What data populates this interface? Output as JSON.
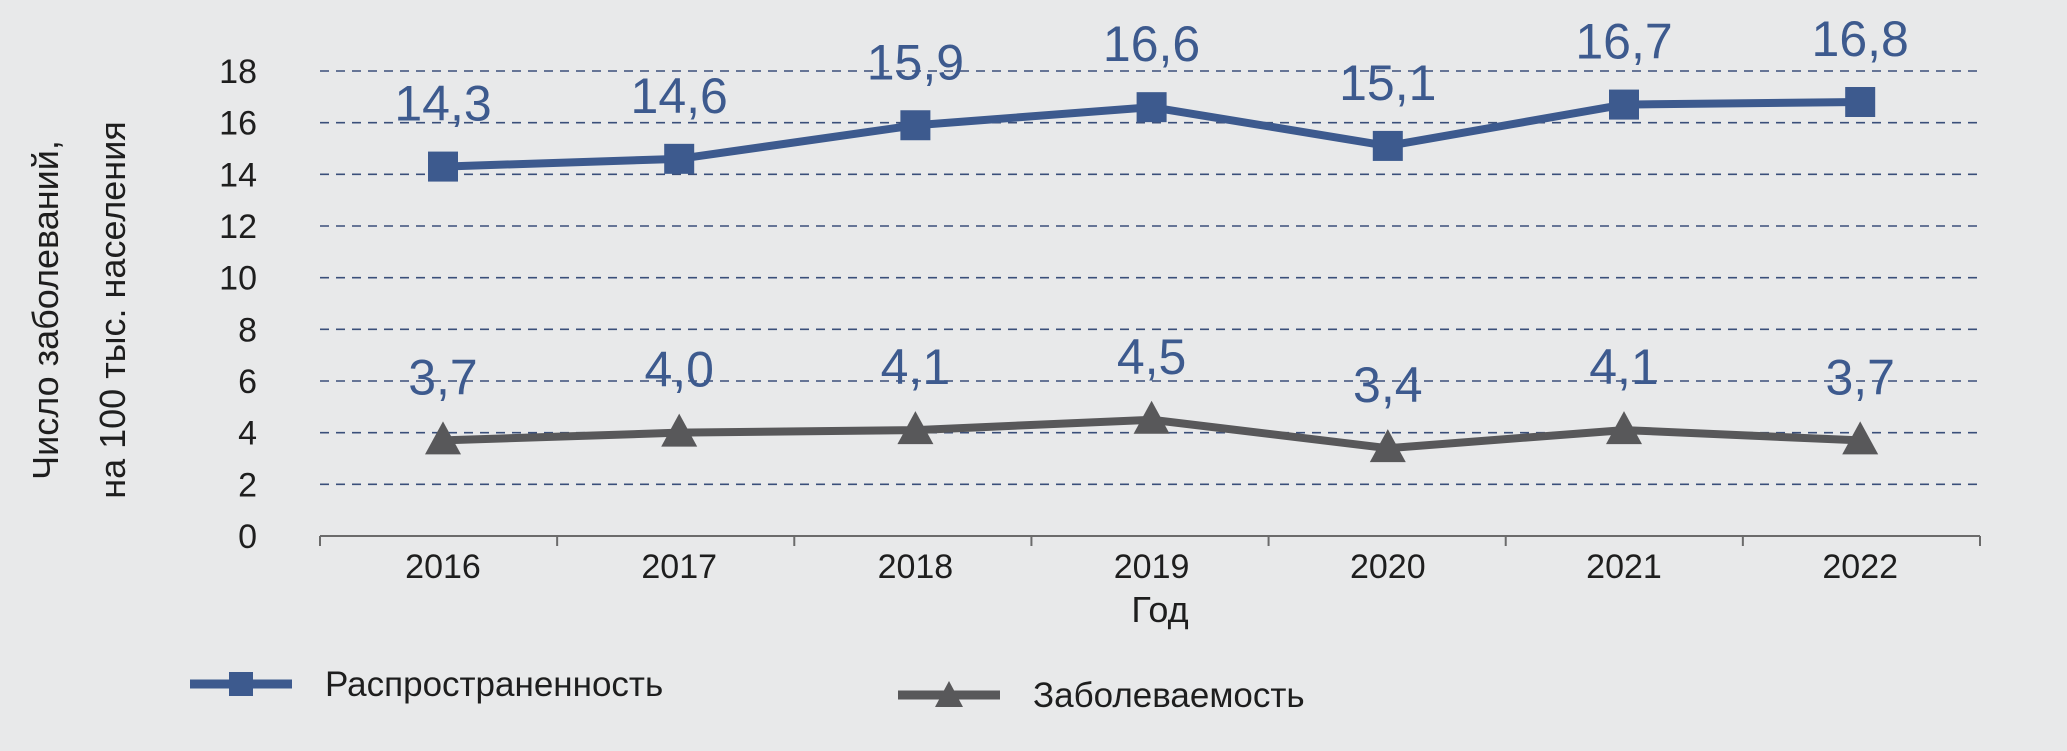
{
  "chart_data": {
    "type": "line",
    "title": "",
    "xlabel": "Год",
    "ylabel_line1": "Число заболеваний,",
    "ylabel_line2": "на 100 тыс. населения",
    "ylim": [
      0,
      18
    ],
    "yticks": [
      0,
      2,
      4,
      6,
      8,
      10,
      12,
      14,
      16,
      18
    ],
    "grid": "horizontal dashed",
    "legend_position": "bottom",
    "categories": [
      "2016",
      "2017",
      "2018",
      "2019",
      "2020",
      "2021",
      "2022"
    ],
    "series": [
      {
        "name": "Распространенность",
        "marker": "square",
        "color": "#3d5a8e",
        "values": [
          14.3,
          14.6,
          15.9,
          16.6,
          15.1,
          16.7,
          16.8
        ],
        "labels": [
          "14,3",
          "14,6",
          "15,9",
          "16,6",
          "15,1",
          "16,7",
          "16,8"
        ]
      },
      {
        "name": "Заболеваемость",
        "marker": "triangle",
        "color": "#58585a",
        "label_color": "#3d5a8e",
        "values": [
          3.7,
          4.0,
          4.1,
          4.5,
          3.4,
          4.1,
          3.7
        ],
        "labels": [
          "3,7",
          "4,0",
          "4,1",
          "4,5",
          "3,4",
          "4,1",
          "3,7"
        ]
      }
    ]
  }
}
